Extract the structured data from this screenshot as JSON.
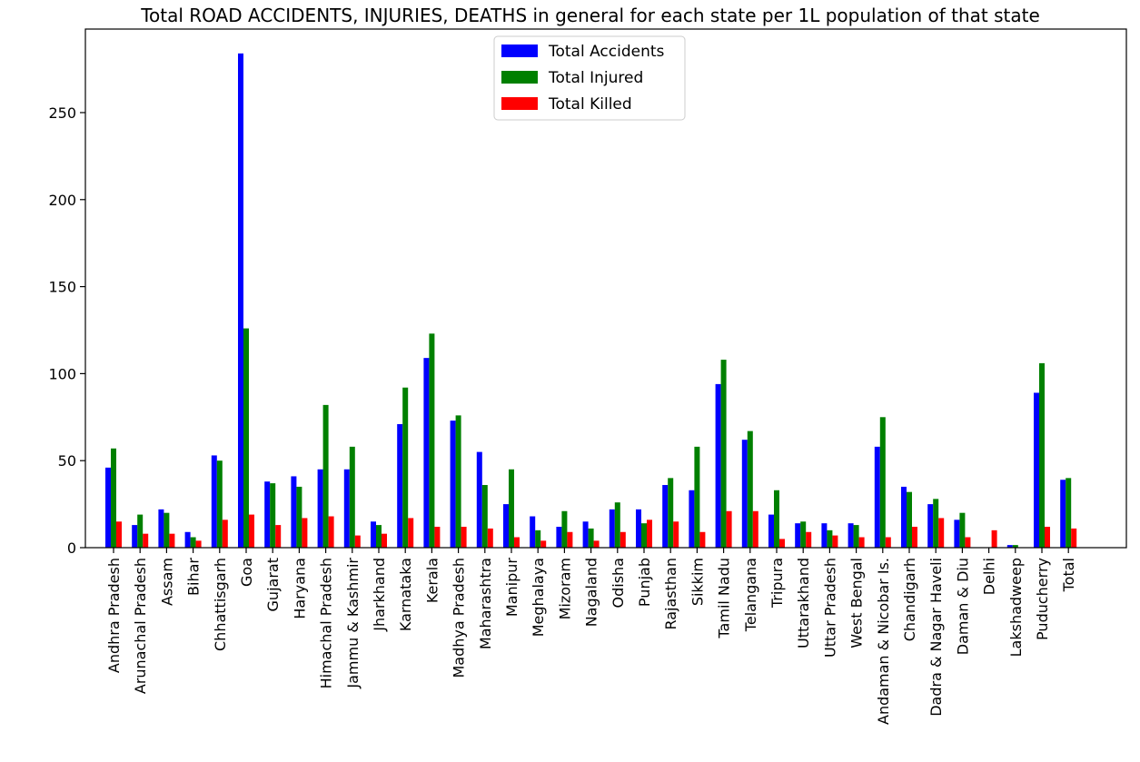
{
  "chart_data": {
    "type": "bar",
    "title": "Total ROAD ACCIDENTS, INJURIES, DEATHS in general for each state per 1L population of that state",
    "xlabel": "",
    "ylabel": "",
    "ylim": [
      0,
      298
    ],
    "yticks": [
      0,
      50,
      100,
      150,
      200,
      250
    ],
    "grid": false,
    "legend_position": "top-center",
    "categories": [
      "Andhra Pradesh",
      "Arunachal Pradesh",
      "Assam",
      "Bihar",
      "Chhattisgarh",
      "Goa",
      "Gujarat",
      "Haryana",
      "Himachal Pradesh",
      "Jammu & Kashmir",
      "Jharkhand",
      "Karnataka",
      "Kerala",
      "Madhya Pradesh",
      "Maharashtra",
      "Manipur",
      "Meghalaya",
      "Mizoram",
      "Nagaland",
      "Odisha",
      "Punjab",
      "Rajasthan",
      "Sikkim",
      "Tamil Nadu",
      "Telangana",
      "Tripura",
      "Uttarakhand",
      "Uttar Pradesh",
      "West Bengal",
      "Andaman & Nicobar Is.",
      "Chandigarh",
      "Dadra & Nagar Haveli",
      "Daman & Diu",
      "Delhi",
      "Lakshadweep",
      "Puducherry",
      "Total"
    ],
    "series": [
      {
        "name": "Total Accidents",
        "color": "#0000ff",
        "values": [
          46,
          13,
          22,
          9,
          53,
          284,
          38,
          41,
          45,
          45,
          15,
          71,
          109,
          73,
          55,
          25,
          18,
          12,
          15,
          22,
          22,
          36,
          33,
          94,
          62,
          19,
          14,
          14,
          14,
          58,
          35,
          25,
          16,
          0,
          1.5,
          89,
          39
        ]
      },
      {
        "name": "Total Injured",
        "color": "#008000",
        "values": [
          57,
          19,
          20,
          6,
          50,
          126,
          37,
          35,
          82,
          58,
          13,
          92,
          123,
          76,
          36,
          45,
          10,
          21,
          11,
          26,
          14,
          40,
          58,
          108,
          67,
          33,
          15,
          10,
          13,
          75,
          32,
          28,
          20,
          0,
          1.5,
          106,
          40
        ]
      },
      {
        "name": "Total Killed",
        "color": "#ff0000",
        "values": [
          15,
          8,
          8,
          4,
          16,
          19,
          13,
          17,
          18,
          7,
          8,
          17,
          12,
          12,
          11,
          6,
          4,
          9,
          4,
          9,
          16,
          15,
          9,
          21,
          21,
          5,
          9,
          7,
          6,
          6,
          12,
          17,
          6,
          10,
          0,
          12,
          11
        ]
      }
    ]
  }
}
